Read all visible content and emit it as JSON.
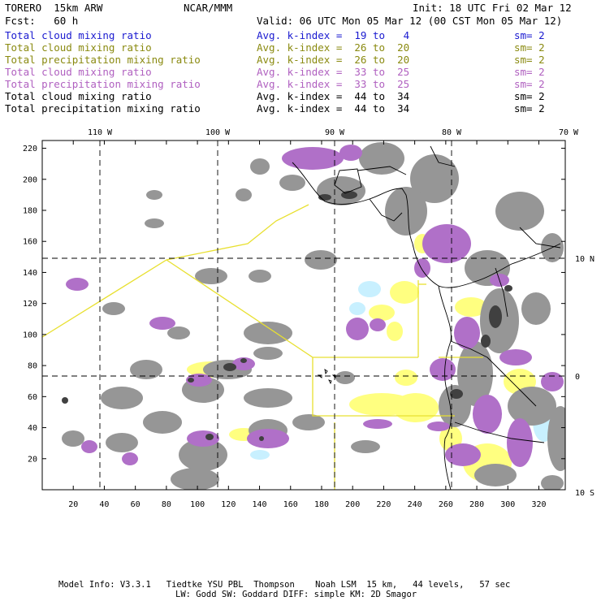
{
  "header": {
    "model_name": "TORERO  15km ARW",
    "org": "NCAR/MMM",
    "init": "Init: 18 UTC Fri 02 Mar 12",
    "fcst": "Fcst:   60 h",
    "valid": "Valid: 06 UTC Mon 05 Mar 12 (00 CST Mon 05 Mar 12)"
  },
  "legend": [
    {
      "field": "Total cloud mixing ratio",
      "kindex": "Avg. k-index =  19 to   4",
      "sm": "sm= 2",
      "color": "#1a1ad0"
    },
    {
      "field": "Total cloud mixing ratio",
      "kindex": "Avg. k-index =  26 to  20",
      "sm": "sm= 2",
      "color": "#8a8a10"
    },
    {
      "field": "Total precipitation mixing ratio",
      "kindex": "Avg. k-index =  26 to  20",
      "sm": "sm= 2",
      "color": "#8a8a10"
    },
    {
      "field": "Total cloud mixing ratio",
      "kindex": "Avg. k-index =  33 to  25",
      "sm": "sm= 2",
      "color": "#b060c0"
    },
    {
      "field": "Total precipitation mixing ratio",
      "kindex": "Avg. k-index =  33 to  25",
      "sm": "sm= 2",
      "color": "#b060c0"
    },
    {
      "field": "Total cloud mixing ratio",
      "kindex": "Avg. k-index =  44 to  34",
      "sm": "sm= 2",
      "color": "#000000"
    },
    {
      "field": "Total precipitation mixing ratio",
      "kindex": "Avg. k-index =  44 to  34",
      "sm": "sm= 2",
      "color": "#000000"
    }
  ],
  "map": {
    "longitude_labels": [
      "110 W",
      "100 W",
      "90 W",
      "80 W",
      "70 W"
    ],
    "latitude_labels": [
      "10 N",
      "0",
      "10 S"
    ],
    "y_grid_ticks": [
      "220",
      "200",
      "180",
      "160",
      "140",
      "120",
      "100",
      "80",
      "60",
      "40",
      "20"
    ],
    "x_grid_ticks": [
      "20",
      "40",
      "60",
      "80",
      "100",
      "120",
      "140",
      "160",
      "180",
      "200",
      "220",
      "240",
      "260",
      "280",
      "300",
      "320"
    ],
    "colors": {
      "vapor_light": "#c8f0ff",
      "yellow": "#ffff80",
      "purple": "#b070c8",
      "gray": "#969696",
      "dark": "#404040",
      "outline": "#e8e030"
    }
  },
  "footer": {
    "line1": "Model Info: V3.3.1   Tiedtke YSU PBL  Thompson    Noah LSM  15 km,   44 levels,   57 sec",
    "line2": "LW: Godd SW: Goddard DIFF: simple KM: 2D Smagor"
  }
}
